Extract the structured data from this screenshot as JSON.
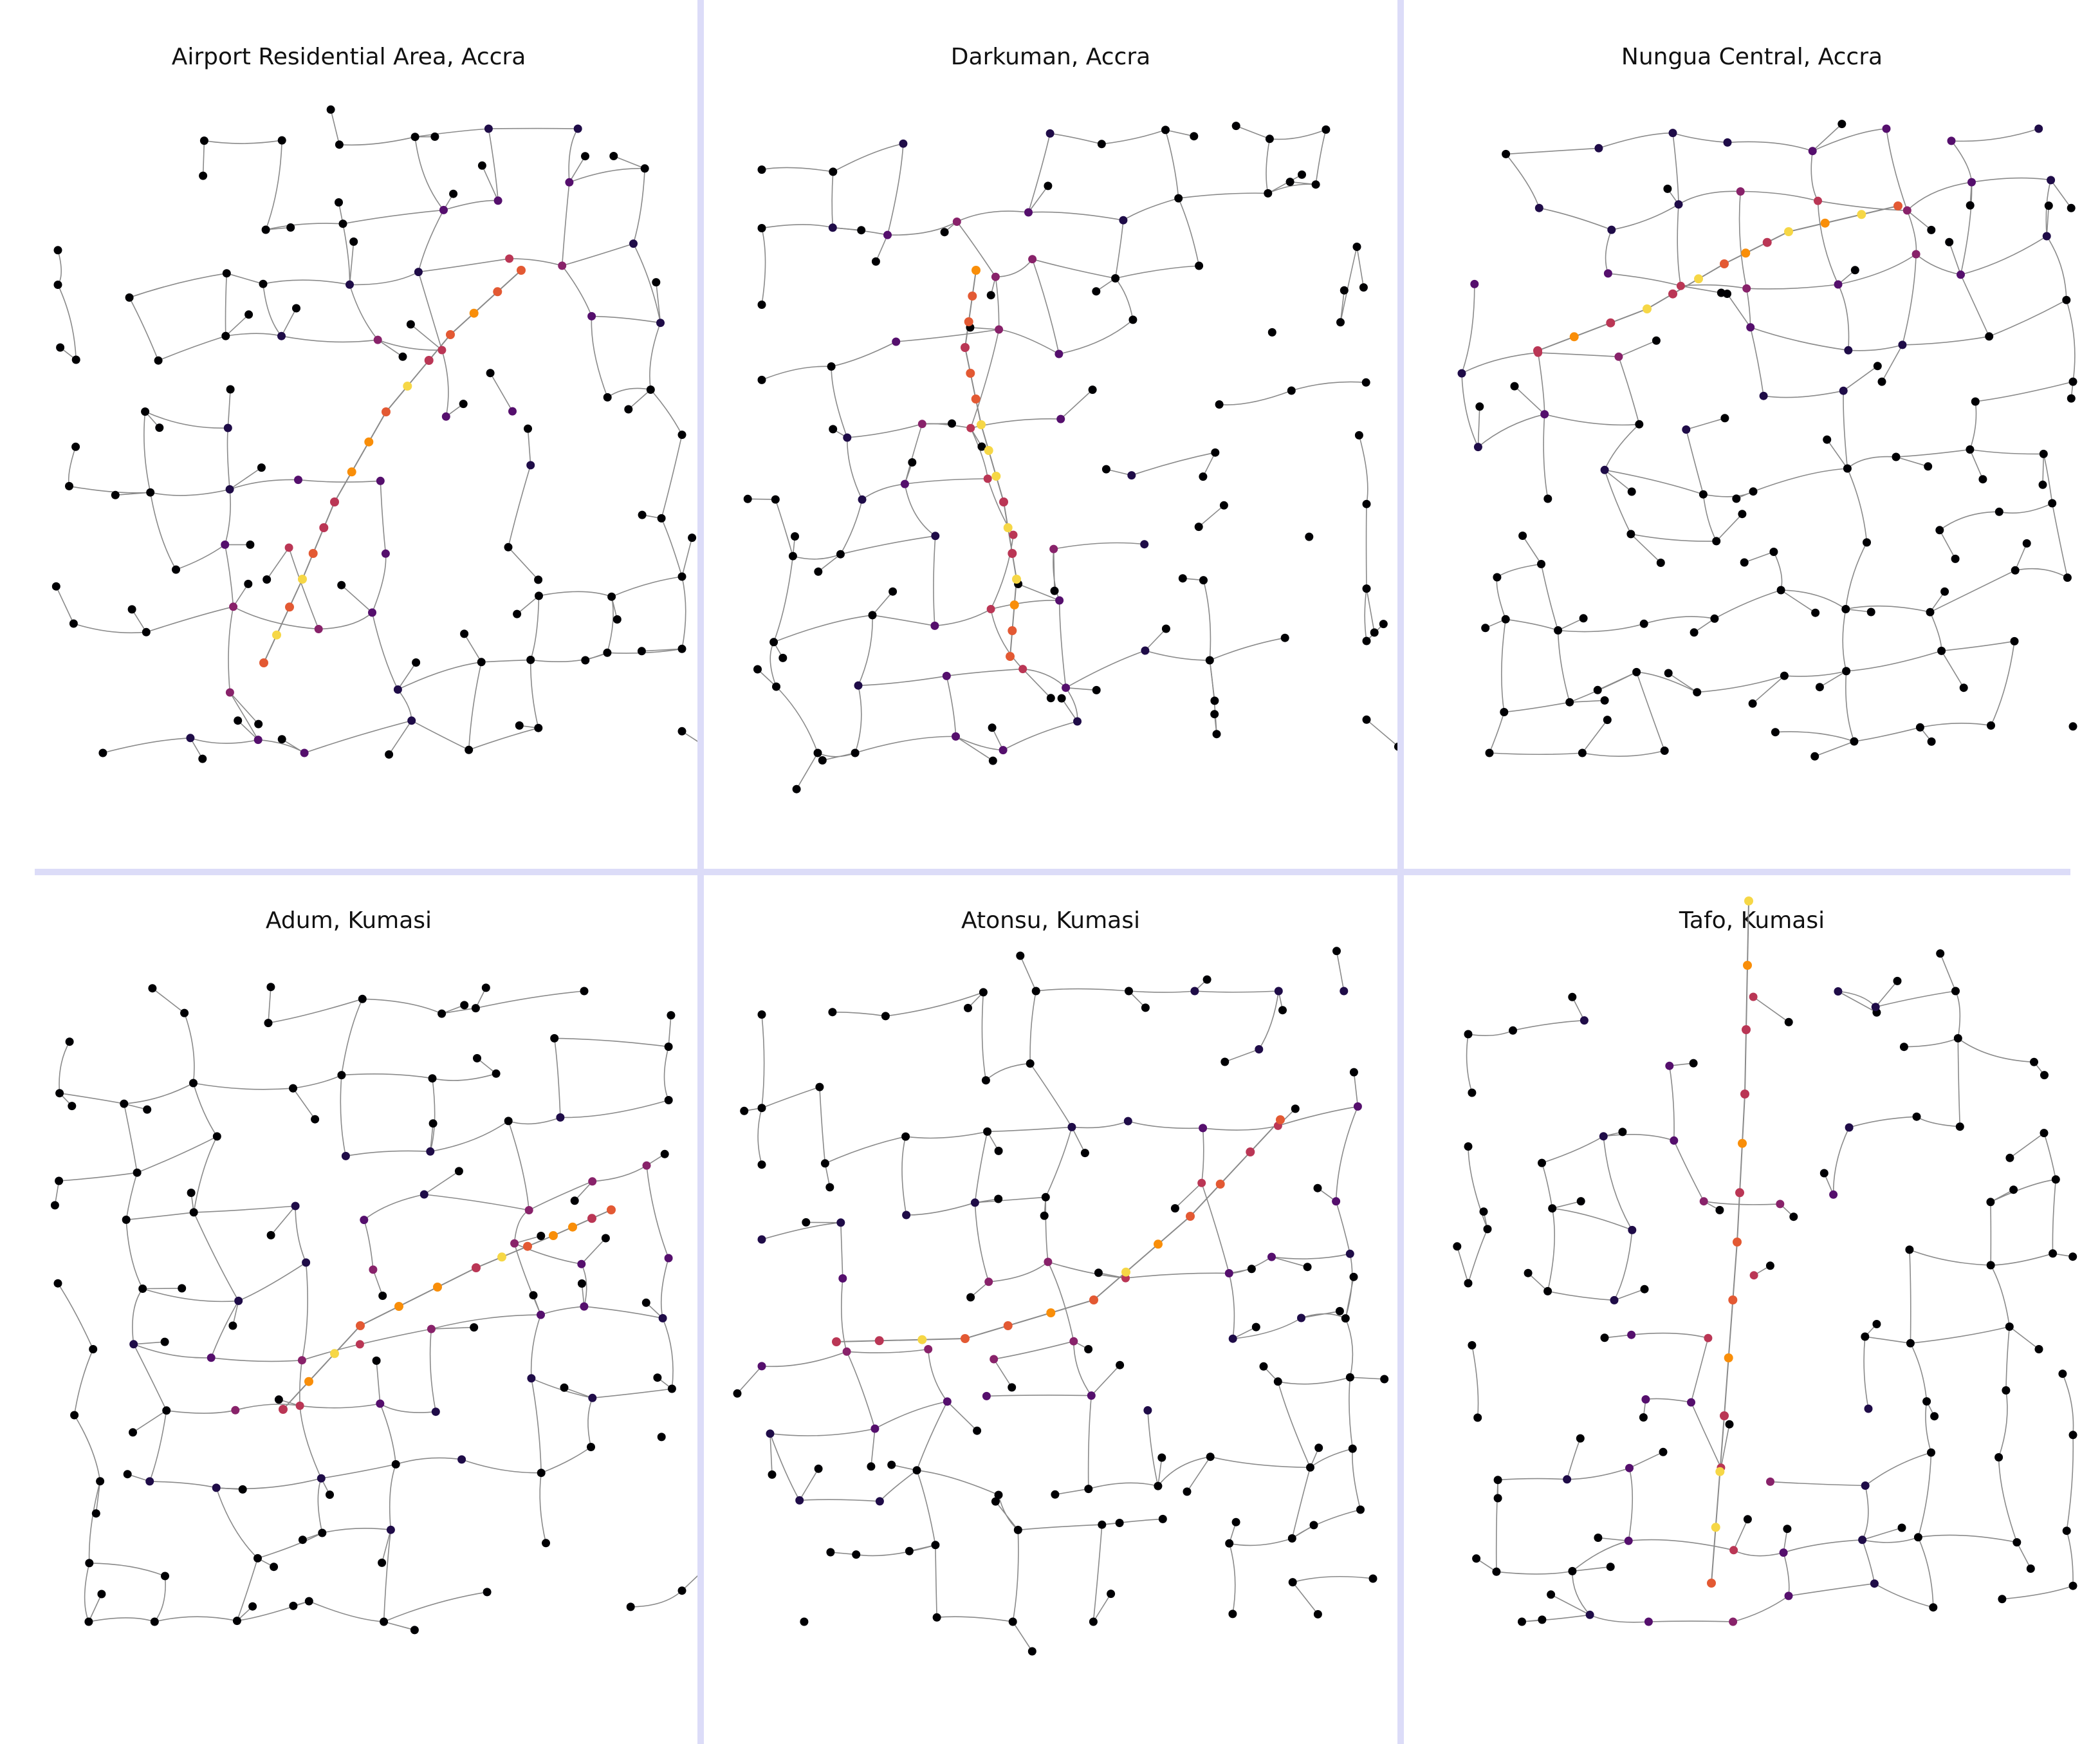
{
  "colors": {
    "edge": "#8a8a8a",
    "divider": "#dcdcf8",
    "node_scale": [
      "#000004",
      "#1f0c48",
      "#550f6d",
      "#88226a",
      "#ba3655",
      "#e35933",
      "#f98e09",
      "#f6d746"
    ]
  },
  "panels": [
    {
      "title": "Airport Residential Area, Accra"
    },
    {
      "title": "Darkuman, Accra"
    },
    {
      "title": "Nungua Central, Accra"
    },
    {
      "title": "Adum, Kumasi"
    },
    {
      "title": "Atonsu, Kumasi"
    },
    {
      "title": "Tafo, Kumasi"
    }
  ]
}
